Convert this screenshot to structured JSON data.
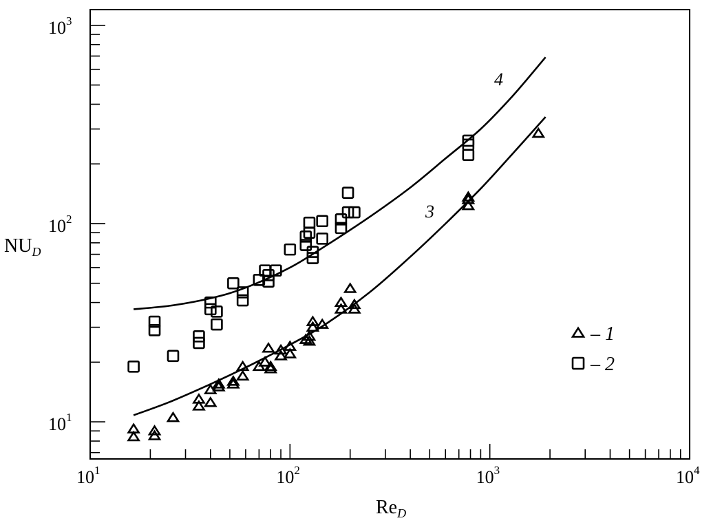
{
  "chart_data": {
    "type": "scatter",
    "xlabel": "Re",
    "xlabel_sub": "D",
    "ylabel": "NU",
    "ylabel_sub": "D",
    "x_scale": "log",
    "y_scale": "log",
    "xlim": [
      10,
      10000
    ],
    "ylim": [
      6.5,
      1200
    ],
    "x_ticks": [
      {
        "base": "10",
        "exp": "1",
        "value": 10
      },
      {
        "base": "10",
        "exp": "2",
        "value": 100
      },
      {
        "base": "10",
        "exp": "3",
        "value": 1000
      },
      {
        "base": "10",
        "exp": "4",
        "value": 10000
      }
    ],
    "y_ticks": [
      {
        "base": "10",
        "exp": "1",
        "value": 10
      },
      {
        "base": "10",
        "exp": "2",
        "value": 100
      },
      {
        "base": "10",
        "exp": "3",
        "value": 1000
      }
    ],
    "grid": false,
    "legend_position": "right",
    "series": [
      {
        "name": "1",
        "legend_label": "– 1",
        "marker": "triangle",
        "points": [
          [
            16.5,
            9.2
          ],
          [
            16.5,
            8.4
          ],
          [
            21,
            9.0
          ],
          [
            21,
            8.5
          ],
          [
            26,
            10.5
          ],
          [
            35,
            13
          ],
          [
            35,
            12
          ],
          [
            40,
            14.5
          ],
          [
            40,
            12.5
          ],
          [
            44,
            15.5
          ],
          [
            44,
            15
          ],
          [
            52,
            16
          ],
          [
            52,
            15.5
          ],
          [
            58,
            19
          ],
          [
            58,
            17
          ],
          [
            70,
            19
          ],
          [
            75,
            20
          ],
          [
            78,
            23.5
          ],
          [
            80,
            19
          ],
          [
            80,
            18.5
          ],
          [
            90,
            23
          ],
          [
            90,
            21.5
          ],
          [
            100,
            24
          ],
          [
            100,
            22
          ],
          [
            120,
            26
          ],
          [
            125,
            27
          ],
          [
            125,
            25.5
          ],
          [
            130,
            32
          ],
          [
            130,
            30
          ],
          [
            145,
            31
          ],
          [
            180,
            40
          ],
          [
            180,
            37
          ],
          [
            200,
            47
          ],
          [
            210,
            39
          ],
          [
            210,
            37
          ],
          [
            780,
            136
          ],
          [
            780,
            132
          ],
          [
            780,
            123
          ],
          [
            1750,
            285
          ]
        ]
      },
      {
        "name": "2",
        "legend_label": "– 2",
        "marker": "square",
        "points": [
          [
            16.5,
            19
          ],
          [
            21,
            32
          ],
          [
            21,
            29
          ],
          [
            26,
            21.5
          ],
          [
            35,
            27
          ],
          [
            35,
            25
          ],
          [
            40,
            40
          ],
          [
            40,
            37
          ],
          [
            43,
            36
          ],
          [
            43,
            31
          ],
          [
            52,
            50
          ],
          [
            58,
            45
          ],
          [
            58,
            41
          ],
          [
            70,
            52
          ],
          [
            75,
            58
          ],
          [
            78,
            55
          ],
          [
            78,
            51
          ],
          [
            85,
            58
          ],
          [
            100,
            74
          ],
          [
            120,
            86
          ],
          [
            120,
            78
          ],
          [
            125,
            101
          ],
          [
            125,
            90
          ],
          [
            130,
            72
          ],
          [
            130,
            67
          ],
          [
            145,
            103
          ],
          [
            145,
            84
          ],
          [
            180,
            105
          ],
          [
            180,
            95
          ],
          [
            195,
            143
          ],
          [
            195,
            114
          ],
          [
            210,
            114
          ],
          [
            780,
            262
          ],
          [
            780,
            250
          ],
          [
            780,
            222
          ]
        ]
      }
    ],
    "curves": [
      {
        "label": "3",
        "points": [
          [
            16.5,
            10.8
          ],
          [
            25,
            12.6
          ],
          [
            40,
            15.5
          ],
          [
            60,
            18.8
          ],
          [
            100,
            24.5
          ],
          [
            150,
            31
          ],
          [
            250,
            45
          ],
          [
            400,
            68
          ],
          [
            600,
            100
          ],
          [
            900,
            150
          ],
          [
            1300,
            225
          ],
          [
            1900,
            345
          ]
        ]
      },
      {
        "label": "4",
        "points": [
          [
            16.5,
            37
          ],
          [
            25,
            38.5
          ],
          [
            40,
            42
          ],
          [
            60,
            47.5
          ],
          [
            100,
            60
          ],
          [
            150,
            77
          ],
          [
            250,
            108
          ],
          [
            400,
            152
          ],
          [
            600,
            213
          ],
          [
            900,
            300
          ],
          [
            1300,
            440
          ],
          [
            1900,
            690
          ]
        ]
      }
    ]
  }
}
